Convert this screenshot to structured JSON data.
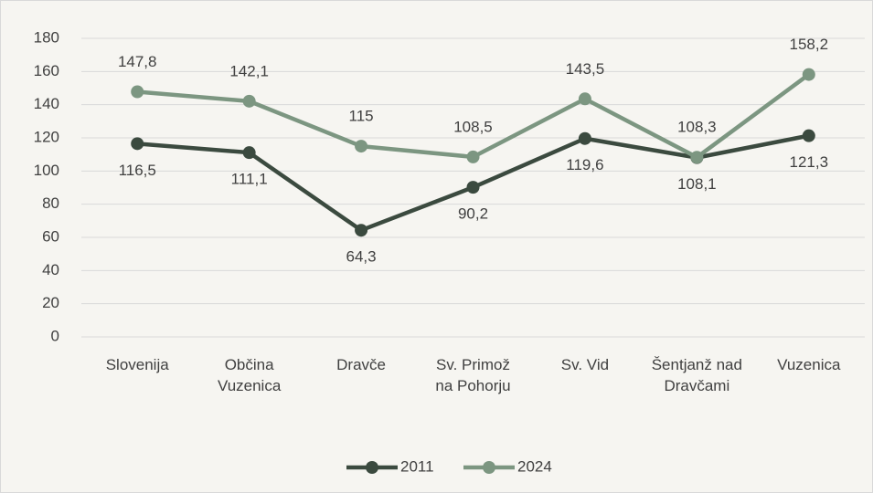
{
  "chart_data": {
    "type": "line",
    "categories": [
      "Slovenija",
      "Občina Vuzenica",
      "Dravče",
      "Sv. Primož na Pohorju",
      "Sv. Vid",
      "Šentjanž nad Dravčami",
      "Vuzenica"
    ],
    "series": [
      {
        "name": "2011",
        "color": "#3b4a3f",
        "values": [
          116.5,
          111.1,
          64.3,
          90.2,
          119.6,
          108.1,
          121.3
        ],
        "value_labels": [
          "116,5",
          "111,1",
          "64,3",
          "90,2",
          "119,6",
          "108,1",
          "121,3"
        ]
      },
      {
        "name": "2024",
        "color": "#7c9681",
        "values": [
          147.8,
          142.1,
          115,
          108.5,
          143.5,
          108.3,
          158.2
        ],
        "value_labels": [
          "147,8",
          "142,1",
          "115",
          "108,5",
          "143,5",
          "108,3",
          "158,2"
        ]
      }
    ],
    "ylim": [
      0,
      180
    ],
    "yticks": [
      0,
      20,
      40,
      60,
      80,
      100,
      120,
      140,
      160,
      180
    ],
    "grid": true,
    "legend": "bottom"
  }
}
